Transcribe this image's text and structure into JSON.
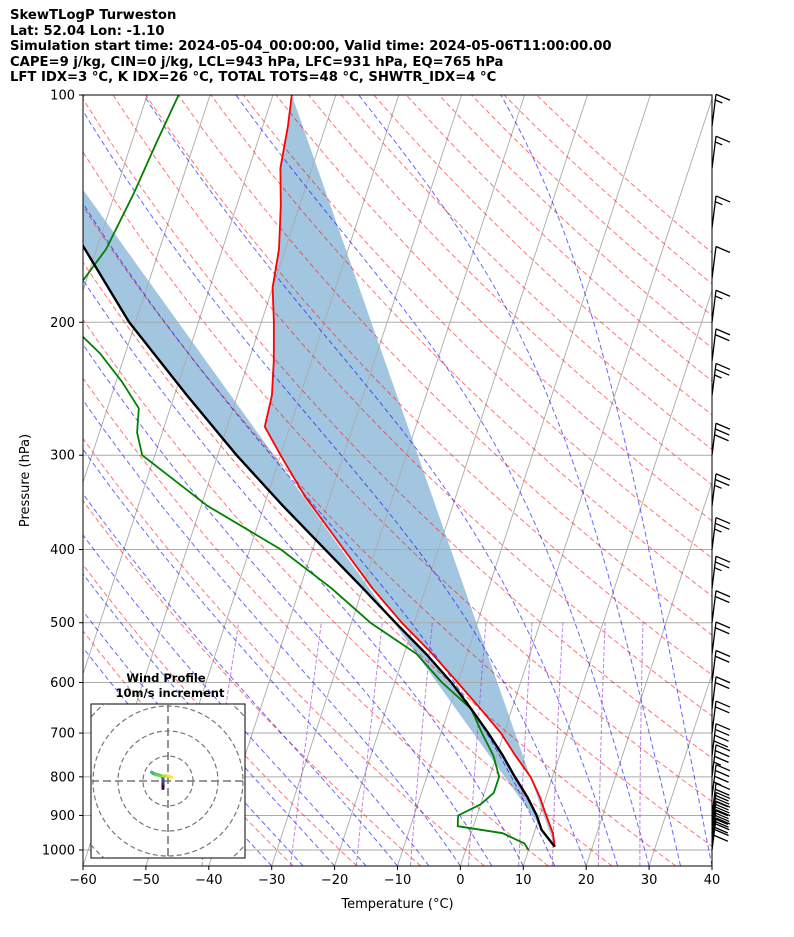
{
  "header": {
    "title": "SkewTLogP Turweston",
    "location": "Lat: 52.04   Lon: -1.10",
    "times": "Simulation start time: 2024-05-04_00:00:00, Valid time: 2024-05-06T11:00:00.00",
    "params": "CAPE=9 j/kg, CIN=0 j/kg, LCL=943 hPa, LFC=931 hPa, EQ=765 hPa",
    "indices": "LFT IDX=3 °C, K IDX=26 °C, TOTAL TOTS=48 °C, SHWTR_IDX=4 °C"
  },
  "chart_data": [
    {
      "type": "line",
      "subtype": "skew-T log-P",
      "xlabel": "Temperature (°C)",
      "ylabel": "Pressure (hPa)",
      "xlim": [
        -60,
        40
      ],
      "ylim": [
        1050,
        100
      ],
      "y_scale": "log",
      "x_ticks": [
        -60,
        -50,
        -40,
        -30,
        -20,
        -10,
        0,
        10,
        20,
        30,
        40
      ],
      "x_tick_labels": [
        "−60",
        "−50",
        "−40",
        "−30",
        "−20",
        "−10",
        "0",
        "10",
        "20",
        "30",
        "40"
      ],
      "y_ticks": [
        1000,
        900,
        800,
        700,
        600,
        500,
        400,
        300,
        200,
        100
      ],
      "y_tick_labels": [
        "1000",
        "900",
        "800",
        "700",
        "600",
        "500",
        "400",
        "300",
        "200",
        "100"
      ],
      "grid": true,
      "colors": {
        "temperature": "#ff0000",
        "dewpoint": "#008000",
        "parcel": "#000000",
        "cape_fill": "#a3c6e0",
        "dry_adiabat": "#ff0000",
        "moist_adiabat": "#0000ff",
        "mixing_ratio": "#9932cc",
        "isotherm": "#aaaaaa"
      },
      "series": [
        {
          "role": "temperature",
          "points": [
            {
              "p": 100,
              "t": -67
            },
            {
              "p": 110,
              "t": -66
            },
            {
              "p": 125,
              "t": -65
            },
            {
              "p": 140,
              "t": -63
            },
            {
              "p": 160,
              "t": -61
            },
            {
              "p": 180,
              "t": -60
            },
            {
              "p": 200,
              "t": -58
            },
            {
              "p": 225,
              "t": -56
            },
            {
              "p": 250,
              "t": -54.5
            },
            {
              "p": 275,
              "t": -54
            },
            {
              "p": 300,
              "t": -50
            },
            {
              "p": 340,
              "t": -44
            },
            {
              "p": 400,
              "t": -35
            },
            {
              "p": 450,
              "t": -28.5
            },
            {
              "p": 500,
              "t": -22
            },
            {
              "p": 550,
              "t": -15.5
            },
            {
              "p": 600,
              "t": -10
            },
            {
              "p": 650,
              "t": -5
            },
            {
              "p": 700,
              "t": -0.5
            },
            {
              "p": 750,
              "t": 3
            },
            {
              "p": 800,
              "t": 6.5
            },
            {
              "p": 850,
              "t": 9
            },
            {
              "p": 900,
              "t": 11
            },
            {
              "p": 950,
              "t": 13
            },
            {
              "p": 990,
              "t": 14
            }
          ]
        },
        {
          "role": "dewpoint",
          "points": [
            {
              "p": 100,
              "t": -85
            },
            {
              "p": 115,
              "t": -86
            },
            {
              "p": 135,
              "t": -87
            },
            {
              "p": 160,
              "t": -88.5
            },
            {
              "p": 180,
              "t": -91
            },
            {
              "p": 190,
              "t": -94
            },
            {
              "p": 205,
              "t": -89
            },
            {
              "p": 220,
              "t": -84
            },
            {
              "p": 240,
              "t": -79
            },
            {
              "p": 260,
              "t": -75
            },
            {
              "p": 280,
              "t": -74
            },
            {
              "p": 300,
              "t": -72
            },
            {
              "p": 350,
              "t": -59
            },
            {
              "p": 400,
              "t": -45
            },
            {
              "p": 450,
              "t": -35
            },
            {
              "p": 500,
              "t": -27
            },
            {
              "p": 550,
              "t": -18
            },
            {
              "p": 600,
              "t": -12.5
            },
            {
              "p": 650,
              "t": -6.5
            },
            {
              "p": 700,
              "t": -3.5
            },
            {
              "p": 750,
              "t": -0.5
            },
            {
              "p": 800,
              "t": 1.5
            },
            {
              "p": 840,
              "t": 1.5
            },
            {
              "p": 870,
              "t": 0
            },
            {
              "p": 900,
              "t": -3
            },
            {
              "p": 930,
              "t": -2.5
            },
            {
              "p": 950,
              "t": 5
            },
            {
              "p": 980,
              "t": 9
            },
            {
              "p": 1000,
              "t": 10
            }
          ]
        },
        {
          "role": "parcel",
          "points": [
            {
              "p": 990,
              "t": 14
            },
            {
              "p": 940,
              "t": 11
            },
            {
              "p": 900,
              "t": 9.5
            },
            {
              "p": 850,
              "t": 7
            },
            {
              "p": 800,
              "t": 4
            },
            {
              "p": 750,
              "t": 1
            },
            {
              "p": 700,
              "t": -2.5
            },
            {
              "p": 650,
              "t": -6.5
            },
            {
              "p": 600,
              "t": -11
            },
            {
              "p": 550,
              "t": -16.5
            },
            {
              "p": 500,
              "t": -23
            },
            {
              "p": 450,
              "t": -30
            },
            {
              "p": 400,
              "t": -38
            },
            {
              "p": 350,
              "t": -47
            },
            {
              "p": 300,
              "t": -57
            },
            {
              "p": 250,
              "t": -68
            },
            {
              "p": 200,
              "t": -81
            },
            {
              "p": 150,
              "t": -95
            },
            {
              "p": 120,
              "t": -104
            },
            {
              "p": 100,
              "t": -111
            }
          ]
        }
      ],
      "wind_barbs": [
        {
          "p": 1000,
          "speed_kt": 40
        },
        {
          "p": 975,
          "speed_kt": 40
        },
        {
          "p": 950,
          "speed_kt": 40
        },
        {
          "p": 925,
          "speed_kt": 40
        },
        {
          "p": 900,
          "speed_kt": 40
        },
        {
          "p": 850,
          "speed_kt": 35
        },
        {
          "p": 800,
          "speed_kt": 35
        },
        {
          "p": 750,
          "speed_kt": 40
        },
        {
          "p": 700,
          "speed_kt": 20
        },
        {
          "p": 650,
          "speed_kt": 20
        },
        {
          "p": 600,
          "speed_kt": 20
        },
        {
          "p": 550,
          "speed_kt": 20
        },
        {
          "p": 500,
          "speed_kt": 20
        },
        {
          "p": 450,
          "speed_kt": 25
        },
        {
          "p": 400,
          "speed_kt": 25
        },
        {
          "p": 350,
          "speed_kt": 25
        },
        {
          "p": 300,
          "speed_kt": 30
        },
        {
          "p": 250,
          "speed_kt": 25
        },
        {
          "p": 225,
          "speed_kt": 20
        },
        {
          "p": 200,
          "speed_kt": 15
        },
        {
          "p": 175,
          "speed_kt": 10
        },
        {
          "p": 150,
          "speed_kt": 15
        },
        {
          "p": 125,
          "speed_kt": 15
        },
        {
          "p": 110,
          "speed_kt": 15
        }
      ]
    },
    {
      "type": "line",
      "subtype": "hodograph",
      "title": "Wind Profile",
      "subtitle": "10m/s increment",
      "ring_increment": 10,
      "points": [
        {
          "u": -2,
          "v": -3
        },
        {
          "u": -2,
          "v": -2
        },
        {
          "u": -2,
          "v": -1
        },
        {
          "u": -2,
          "v": 0
        },
        {
          "u": -2,
          "v": 1
        },
        {
          "u": -2.5,
          "v": 2
        },
        {
          "u": -4,
          "v": 2.5
        },
        {
          "u": -6,
          "v": 3
        },
        {
          "u": -6.5,
          "v": 3.5
        },
        {
          "u": -5,
          "v": 2.5
        },
        {
          "u": -2,
          "v": 2
        },
        {
          "u": 0,
          "v": 2
        },
        {
          "u": 1.5,
          "v": 1.5
        }
      ]
    }
  ]
}
